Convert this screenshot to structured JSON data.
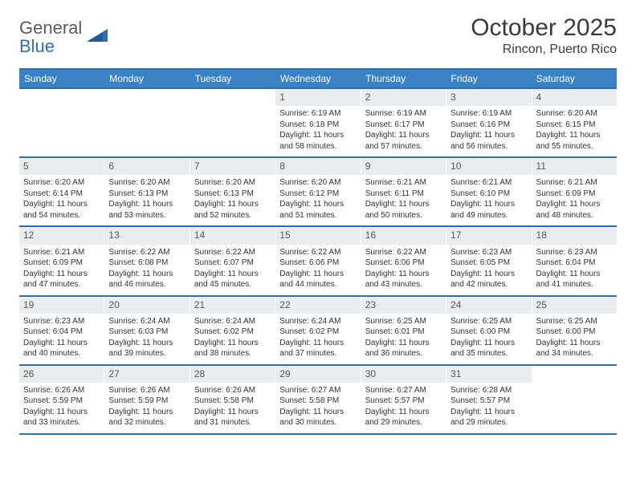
{
  "brand": {
    "word1": "General",
    "word2": "Blue"
  },
  "title": "October 2025",
  "location": "Rincon, Puerto Rico",
  "colors": {
    "header_bg": "#3b82c4",
    "border": "#2f6fb0",
    "daynum_bg": "#e9edf0",
    "text": "#333333",
    "logo_gray": "#5a5a5a",
    "logo_blue": "#2f6fb0"
  },
  "weekdays": [
    "Sunday",
    "Monday",
    "Tuesday",
    "Wednesday",
    "Thursday",
    "Friday",
    "Saturday"
  ],
  "weeks": [
    [
      {
        "empty": true
      },
      {
        "empty": true
      },
      {
        "empty": true
      },
      {
        "day": "1",
        "sunrise": "Sunrise: 6:19 AM",
        "sunset": "Sunset: 6:18 PM",
        "daylight": "Daylight: 11 hours and 58 minutes."
      },
      {
        "day": "2",
        "sunrise": "Sunrise: 6:19 AM",
        "sunset": "Sunset: 6:17 PM",
        "daylight": "Daylight: 11 hours and 57 minutes."
      },
      {
        "day": "3",
        "sunrise": "Sunrise: 6:19 AM",
        "sunset": "Sunset: 6:16 PM",
        "daylight": "Daylight: 11 hours and 56 minutes."
      },
      {
        "day": "4",
        "sunrise": "Sunrise: 6:20 AM",
        "sunset": "Sunset: 6:15 PM",
        "daylight": "Daylight: 11 hours and 55 minutes."
      }
    ],
    [
      {
        "day": "5",
        "sunrise": "Sunrise: 6:20 AM",
        "sunset": "Sunset: 6:14 PM",
        "daylight": "Daylight: 11 hours and 54 minutes."
      },
      {
        "day": "6",
        "sunrise": "Sunrise: 6:20 AM",
        "sunset": "Sunset: 6:13 PM",
        "daylight": "Daylight: 11 hours and 53 minutes."
      },
      {
        "day": "7",
        "sunrise": "Sunrise: 6:20 AM",
        "sunset": "Sunset: 6:13 PM",
        "daylight": "Daylight: 11 hours and 52 minutes."
      },
      {
        "day": "8",
        "sunrise": "Sunrise: 6:20 AM",
        "sunset": "Sunset: 6:12 PM",
        "daylight": "Daylight: 11 hours and 51 minutes."
      },
      {
        "day": "9",
        "sunrise": "Sunrise: 6:21 AM",
        "sunset": "Sunset: 6:11 PM",
        "daylight": "Daylight: 11 hours and 50 minutes."
      },
      {
        "day": "10",
        "sunrise": "Sunrise: 6:21 AM",
        "sunset": "Sunset: 6:10 PM",
        "daylight": "Daylight: 11 hours and 49 minutes."
      },
      {
        "day": "11",
        "sunrise": "Sunrise: 6:21 AM",
        "sunset": "Sunset: 6:09 PM",
        "daylight": "Daylight: 11 hours and 48 minutes."
      }
    ],
    [
      {
        "day": "12",
        "sunrise": "Sunrise: 6:21 AM",
        "sunset": "Sunset: 6:09 PM",
        "daylight": "Daylight: 11 hours and 47 minutes."
      },
      {
        "day": "13",
        "sunrise": "Sunrise: 6:22 AM",
        "sunset": "Sunset: 6:08 PM",
        "daylight": "Daylight: 11 hours and 46 minutes."
      },
      {
        "day": "14",
        "sunrise": "Sunrise: 6:22 AM",
        "sunset": "Sunset: 6:07 PM",
        "daylight": "Daylight: 11 hours and 45 minutes."
      },
      {
        "day": "15",
        "sunrise": "Sunrise: 6:22 AM",
        "sunset": "Sunset: 6:06 PM",
        "daylight": "Daylight: 11 hours and 44 minutes."
      },
      {
        "day": "16",
        "sunrise": "Sunrise: 6:22 AM",
        "sunset": "Sunset: 6:06 PM",
        "daylight": "Daylight: 11 hours and 43 minutes."
      },
      {
        "day": "17",
        "sunrise": "Sunrise: 6:23 AM",
        "sunset": "Sunset: 6:05 PM",
        "daylight": "Daylight: 11 hours and 42 minutes."
      },
      {
        "day": "18",
        "sunrise": "Sunrise: 6:23 AM",
        "sunset": "Sunset: 6:04 PM",
        "daylight": "Daylight: 11 hours and 41 minutes."
      }
    ],
    [
      {
        "day": "19",
        "sunrise": "Sunrise: 6:23 AM",
        "sunset": "Sunset: 6:04 PM",
        "daylight": "Daylight: 11 hours and 40 minutes."
      },
      {
        "day": "20",
        "sunrise": "Sunrise: 6:24 AM",
        "sunset": "Sunset: 6:03 PM",
        "daylight": "Daylight: 11 hours and 39 minutes."
      },
      {
        "day": "21",
        "sunrise": "Sunrise: 6:24 AM",
        "sunset": "Sunset: 6:02 PM",
        "daylight": "Daylight: 11 hours and 38 minutes."
      },
      {
        "day": "22",
        "sunrise": "Sunrise: 6:24 AM",
        "sunset": "Sunset: 6:02 PM",
        "daylight": "Daylight: 11 hours and 37 minutes."
      },
      {
        "day": "23",
        "sunrise": "Sunrise: 6:25 AM",
        "sunset": "Sunset: 6:01 PM",
        "daylight": "Daylight: 11 hours and 36 minutes."
      },
      {
        "day": "24",
        "sunrise": "Sunrise: 6:25 AM",
        "sunset": "Sunset: 6:00 PM",
        "daylight": "Daylight: 11 hours and 35 minutes."
      },
      {
        "day": "25",
        "sunrise": "Sunrise: 6:25 AM",
        "sunset": "Sunset: 6:00 PM",
        "daylight": "Daylight: 11 hours and 34 minutes."
      }
    ],
    [
      {
        "day": "26",
        "sunrise": "Sunrise: 6:26 AM",
        "sunset": "Sunset: 5:59 PM",
        "daylight": "Daylight: 11 hours and 33 minutes."
      },
      {
        "day": "27",
        "sunrise": "Sunrise: 6:26 AM",
        "sunset": "Sunset: 5:59 PM",
        "daylight": "Daylight: 11 hours and 32 minutes."
      },
      {
        "day": "28",
        "sunrise": "Sunrise: 6:26 AM",
        "sunset": "Sunset: 5:58 PM",
        "daylight": "Daylight: 11 hours and 31 minutes."
      },
      {
        "day": "29",
        "sunrise": "Sunrise: 6:27 AM",
        "sunset": "Sunset: 5:58 PM",
        "daylight": "Daylight: 11 hours and 30 minutes."
      },
      {
        "day": "30",
        "sunrise": "Sunrise: 6:27 AM",
        "sunset": "Sunset: 5:57 PM",
        "daylight": "Daylight: 11 hours and 29 minutes."
      },
      {
        "day": "31",
        "sunrise": "Sunrise: 6:28 AM",
        "sunset": "Sunset: 5:57 PM",
        "daylight": "Daylight: 11 hours and 29 minutes."
      },
      {
        "empty": true
      }
    ]
  ]
}
